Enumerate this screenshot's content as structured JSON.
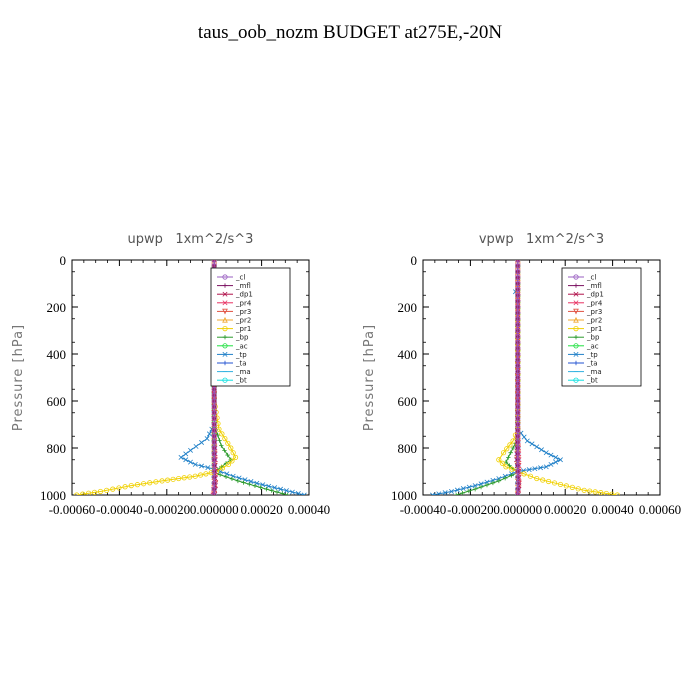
{
  "figure": {
    "title": "taus_oob_nozm  BUDGET at275E,-20N"
  },
  "chart_data": [
    {
      "type": "line",
      "title": "upwp   1xm^2/s^3",
      "ylabel": "Pressure [hPa]",
      "xlabel": "",
      "xlim": [
        -0.0006,
        0.0004
      ],
      "ylim": [
        1000,
        0
      ],
      "x_ticks": [
        -0.0006,
        -0.0004,
        -0.0002,
        0.0,
        0.0002,
        0.0004
      ],
      "x_tick_labels": [
        "-0.00060",
        "-0.00040",
        "-0.00020",
        "0.000000",
        "0.00020",
        "0.00040"
      ],
      "y_ticks": [
        0,
        200,
        400,
        600,
        800,
        1000
      ],
      "y_tick_labels": [
        "0",
        "200",
        "400",
        "600",
        "800",
        "1000"
      ],
      "legend_position": "top-right",
      "series": [
        {
          "name": "_cl",
          "color": "#9a5fc2",
          "marker": "o",
          "points": [
            [
              0,
              0
            ],
            [
              0,
              200
            ],
            [
              0,
              400
            ],
            [
              0,
              600
            ],
            [
              0,
              800
            ],
            [
              0,
              1000
            ]
          ]
        },
        {
          "name": "_mfl",
          "color": "#7a1060",
          "marker": "+",
          "points": [
            [
              0,
              0
            ],
            [
              0,
              300
            ],
            [
              0,
              600
            ],
            [
              0,
              1000
            ]
          ]
        },
        {
          "name": "_dp1",
          "color": "#b0104a",
          "marker": "x",
          "points": [
            [
              0,
              0
            ],
            [
              0,
              400
            ],
            [
              0,
              700
            ],
            [
              0,
              850
            ],
            [
              5e-06,
              900
            ],
            [
              5e-06,
              960
            ],
            [
              0,
              1000
            ]
          ]
        },
        {
          "name": "_pr4",
          "color": "#e83060",
          "marker": "x",
          "points": [
            [
              0,
              0
            ],
            [
              0,
              700
            ],
            [
              5e-06,
              850
            ],
            [
              0,
              950
            ],
            [
              -5e-06,
              1000
            ]
          ]
        },
        {
          "name": "_pr3",
          "color": "#e05040",
          "marker": "v",
          "points": [
            [
              0,
              0
            ],
            [
              0,
              700
            ],
            [
              0,
              850
            ],
            [
              5e-06,
              950
            ],
            [
              0,
              1000
            ]
          ]
        },
        {
          "name": "_pr2",
          "color": "#f0a830",
          "marker": "^",
          "points": [
            [
              0,
              0
            ],
            [
              0,
              700
            ],
            [
              0,
              1000
            ]
          ]
        },
        {
          "name": "_pr1",
          "color": "#f0d000",
          "marker": "o",
          "points": [
            [
              0,
              0
            ],
            [
              0,
              600
            ],
            [
              2e-05,
              720
            ],
            [
              7e-05,
              800
            ],
            [
              9e-05,
              840
            ],
            [
              6e-05,
              870
            ],
            [
              1e-05,
              900
            ],
            [
              -8e-05,
              920
            ],
            [
              -0.00022,
              940
            ],
            [
              -0.00035,
              960
            ],
            [
              -0.00048,
              985
            ],
            [
              -0.00058,
              1000
            ]
          ]
        },
        {
          "name": "_bp",
          "color": "#2a9a2a",
          "marker": "+",
          "points": [
            [
              0,
              0
            ],
            [
              0,
              700
            ],
            [
              3e-05,
              790
            ],
            [
              7e-05,
              850
            ],
            [
              3e-05,
              880
            ],
            [
              0.0,
              905
            ],
            [
              0.0001,
              940
            ],
            [
              0.00022,
              975
            ],
            [
              0.00031,
              1000
            ]
          ]
        },
        {
          "name": "_ac",
          "color": "#20e040",
          "marker": "o",
          "points": [
            [
              0,
              0
            ],
            [
              0,
              1000
            ]
          ]
        },
        {
          "name": "_tp",
          "color": "#2080c8",
          "marker": "x",
          "points": [
            [
              0,
              0
            ],
            [
              0,
              700
            ],
            [
              -3e-05,
              760
            ],
            [
              -0.0001,
              810
            ],
            [
              -0.00014,
              840
            ],
            [
              -8e-05,
              870
            ],
            [
              0.0,
              890
            ],
            [
              8e-05,
              920
            ],
            [
              0.00018,
              950
            ],
            [
              0.00028,
              975
            ],
            [
              0.00038,
              1000
            ]
          ]
        },
        {
          "name": "_ta",
          "color": "#2050d0",
          "marker": "+",
          "points": [
            [
              0,
              0
            ],
            [
              0,
              1000
            ]
          ]
        },
        {
          "name": "_ma",
          "color": "#30b0e0",
          "marker": "-",
          "points": [
            [
              0,
              0
            ],
            [
              0,
              1000
            ]
          ]
        },
        {
          "name": "_bt",
          "color": "#10e0e0",
          "marker": "o",
          "points": [
            [
              0,
              0
            ],
            [
              0,
              1000
            ]
          ]
        }
      ]
    },
    {
      "type": "line",
      "title": "vpwp   1xm^2/s^3",
      "ylabel": "Pressure [hPa]",
      "xlabel": "",
      "xlim": [
        -0.0004,
        0.0006
      ],
      "ylim": [
        1000,
        0
      ],
      "x_ticks": [
        -0.0004,
        -0.0002,
        0.0,
        0.0002,
        0.0004,
        0.0006
      ],
      "x_tick_labels": [
        "-0.00040",
        "-0.00020",
        "0.000000",
        "0.00020",
        "0.00040",
        "0.00060"
      ],
      "y_ticks": [
        0,
        200,
        400,
        600,
        800,
        1000
      ],
      "y_tick_labels": [
        "0",
        "200",
        "400",
        "600",
        "800",
        "1000"
      ],
      "legend_position": "top-right",
      "series": [
        {
          "name": "_cl",
          "color": "#9a5fc2",
          "marker": "o",
          "points": [
            [
              0,
              0
            ],
            [
              0,
              200
            ],
            [
              0,
              400
            ],
            [
              0,
              600
            ],
            [
              0,
              800
            ],
            [
              0,
              1000
            ]
          ]
        },
        {
          "name": "_mfl",
          "color": "#7a1060",
          "marker": "+",
          "points": [
            [
              0,
              0
            ],
            [
              0,
              300
            ],
            [
              0,
              600
            ],
            [
              0,
              1000
            ]
          ]
        },
        {
          "name": "_dp1",
          "color": "#b0104a",
          "marker": "x",
          "points": [
            [
              0,
              0
            ],
            [
              0,
              400
            ],
            [
              0,
              700
            ],
            [
              -5e-06,
              850
            ],
            [
              0,
              900
            ],
            [
              5e-06,
              960
            ],
            [
              0,
              1000
            ]
          ]
        },
        {
          "name": "_pr4",
          "color": "#e83060",
          "marker": "x",
          "points": [
            [
              0,
              0
            ],
            [
              0,
              700
            ],
            [
              5e-06,
              850
            ],
            [
              5e-06,
              950
            ],
            [
              0,
              1000
            ]
          ]
        },
        {
          "name": "_pr3",
          "color": "#e05040",
          "marker": "v",
          "points": [
            [
              0,
              0
            ],
            [
              0,
              700
            ],
            [
              0,
              850
            ],
            [
              5e-06,
              950
            ],
            [
              0,
              1000
            ]
          ]
        },
        {
          "name": "_pr2",
          "color": "#f0a830",
          "marker": "^",
          "points": [
            [
              0,
              0
            ],
            [
              0,
              700
            ],
            [
              0,
              1000
            ]
          ]
        },
        {
          "name": "_pr1",
          "color": "#f0d000",
          "marker": "o",
          "points": [
            [
              0,
              0
            ],
            [
              0,
              720
            ],
            [
              -2e-05,
              770
            ],
            [
              -6e-05,
              820
            ],
            [
              -8e-05,
              850
            ],
            [
              -5e-05,
              880
            ],
            [
              0.0,
              900
            ],
            [
              8e-05,
              930
            ],
            [
              0.00018,
              955
            ],
            [
              0.00028,
              980
            ],
            [
              0.00042,
              1000
            ]
          ]
        },
        {
          "name": "_bp",
          "color": "#2a9a2a",
          "marker": "+",
          "points": [
            [
              0,
              0
            ],
            [
              0,
              760
            ],
            [
              -3e-05,
              820
            ],
            [
              -5e-05,
              860
            ],
            [
              -2e-05,
              890
            ],
            [
              0.0,
              905
            ],
            [
              -8e-05,
              940
            ],
            [
              -0.00018,
              975
            ],
            [
              -0.00026,
              1000
            ]
          ]
        },
        {
          "name": "_ac",
          "color": "#20e040",
          "marker": "o",
          "points": [
            [
              0,
              0
            ],
            [
              0,
              1000
            ]
          ]
        },
        {
          "name": "_tp",
          "color": "#2080c8",
          "marker": "x",
          "points": [
            [
              0,
              0
            ],
            [
              0,
              130
            ],
            [
              -1e-05,
              135
            ],
            [
              0,
              145
            ],
            [
              0,
              720
            ],
            [
              4e-05,
              770
            ],
            [
              0.00012,
              820
            ],
            [
              0.00018,
              850
            ],
            [
              0.00012,
              880
            ],
            [
              0.0,
              900
            ],
            [
              -8e-05,
              930
            ],
            [
              -0.00018,
              960
            ],
            [
              -0.00028,
              985
            ],
            [
              -0.00036,
              1000
            ]
          ]
        },
        {
          "name": "_ta",
          "color": "#2050d0",
          "marker": "+",
          "points": [
            [
              0,
              0
            ],
            [
              0,
              1000
            ]
          ]
        },
        {
          "name": "_ma",
          "color": "#30b0e0",
          "marker": "-",
          "points": [
            [
              0,
              0
            ],
            [
              0,
              1000
            ]
          ]
        },
        {
          "name": "_bt",
          "color": "#10e0e0",
          "marker": "o",
          "points": [
            [
              0,
              0
            ],
            [
              0,
              1000
            ]
          ]
        }
      ]
    }
  ]
}
